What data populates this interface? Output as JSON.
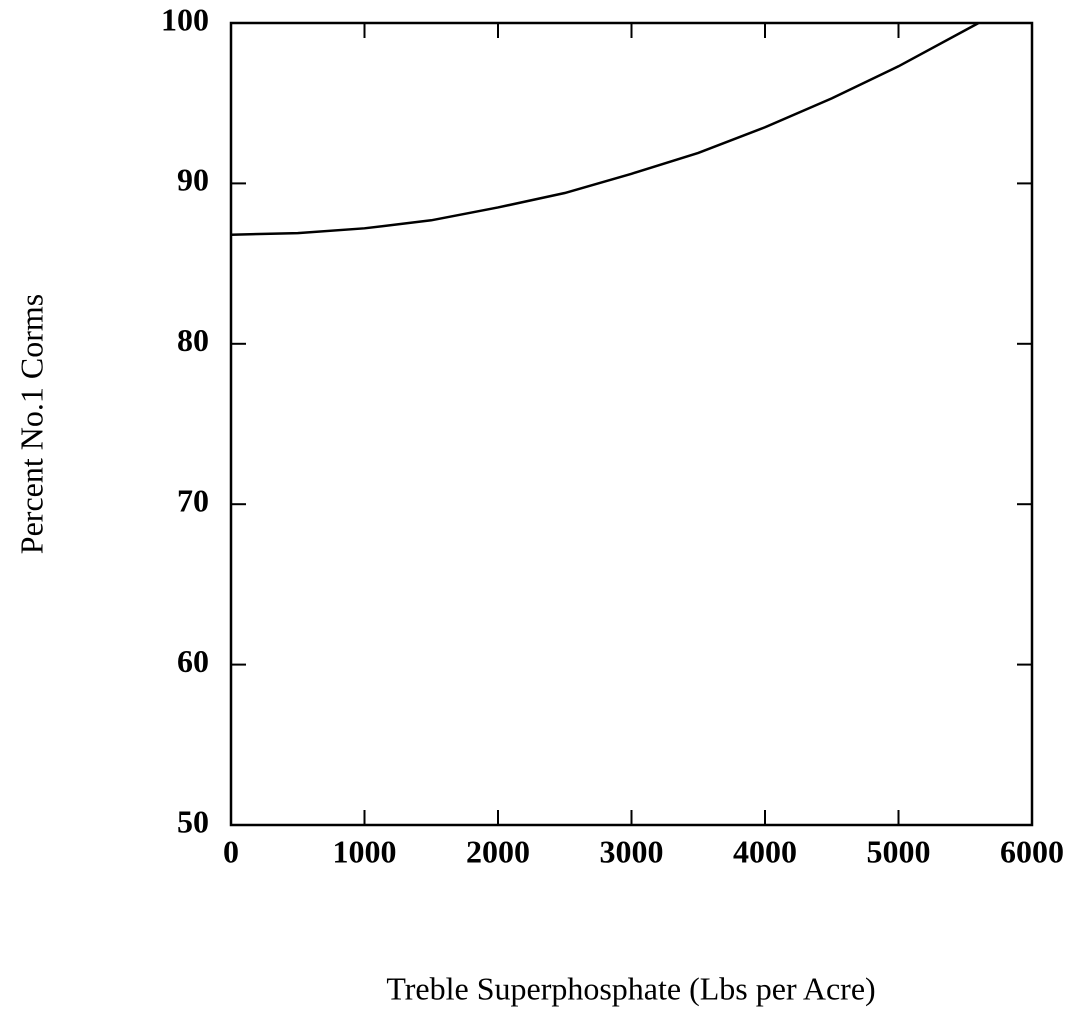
{
  "chart_data": {
    "type": "line",
    "xlabel": "Treble Superphosphate (Lbs per Acre)",
    "ylabel": "Percent No.1 Corms",
    "x": [
      0,
      500,
      1000,
      1500,
      2000,
      2500,
      3000,
      3500,
      4000,
      4500,
      5000,
      5600
    ],
    "series": [
      {
        "name": null,
        "color": "#000000",
        "values": [
          86.8,
          86.9,
          87.2,
          87.7,
          88.5,
          89.4,
          90.6,
          91.9,
          93.5,
          95.3,
          97.3,
          100
        ]
      }
    ],
    "xlim": [
      0,
      6000
    ],
    "xticks": [
      0,
      1000,
      2000,
      3000,
      4000,
      5000,
      6000
    ],
    "ylim": [
      50,
      100
    ],
    "yticks": [
      50,
      60,
      70,
      80,
      90,
      100
    ],
    "grid": false
  }
}
